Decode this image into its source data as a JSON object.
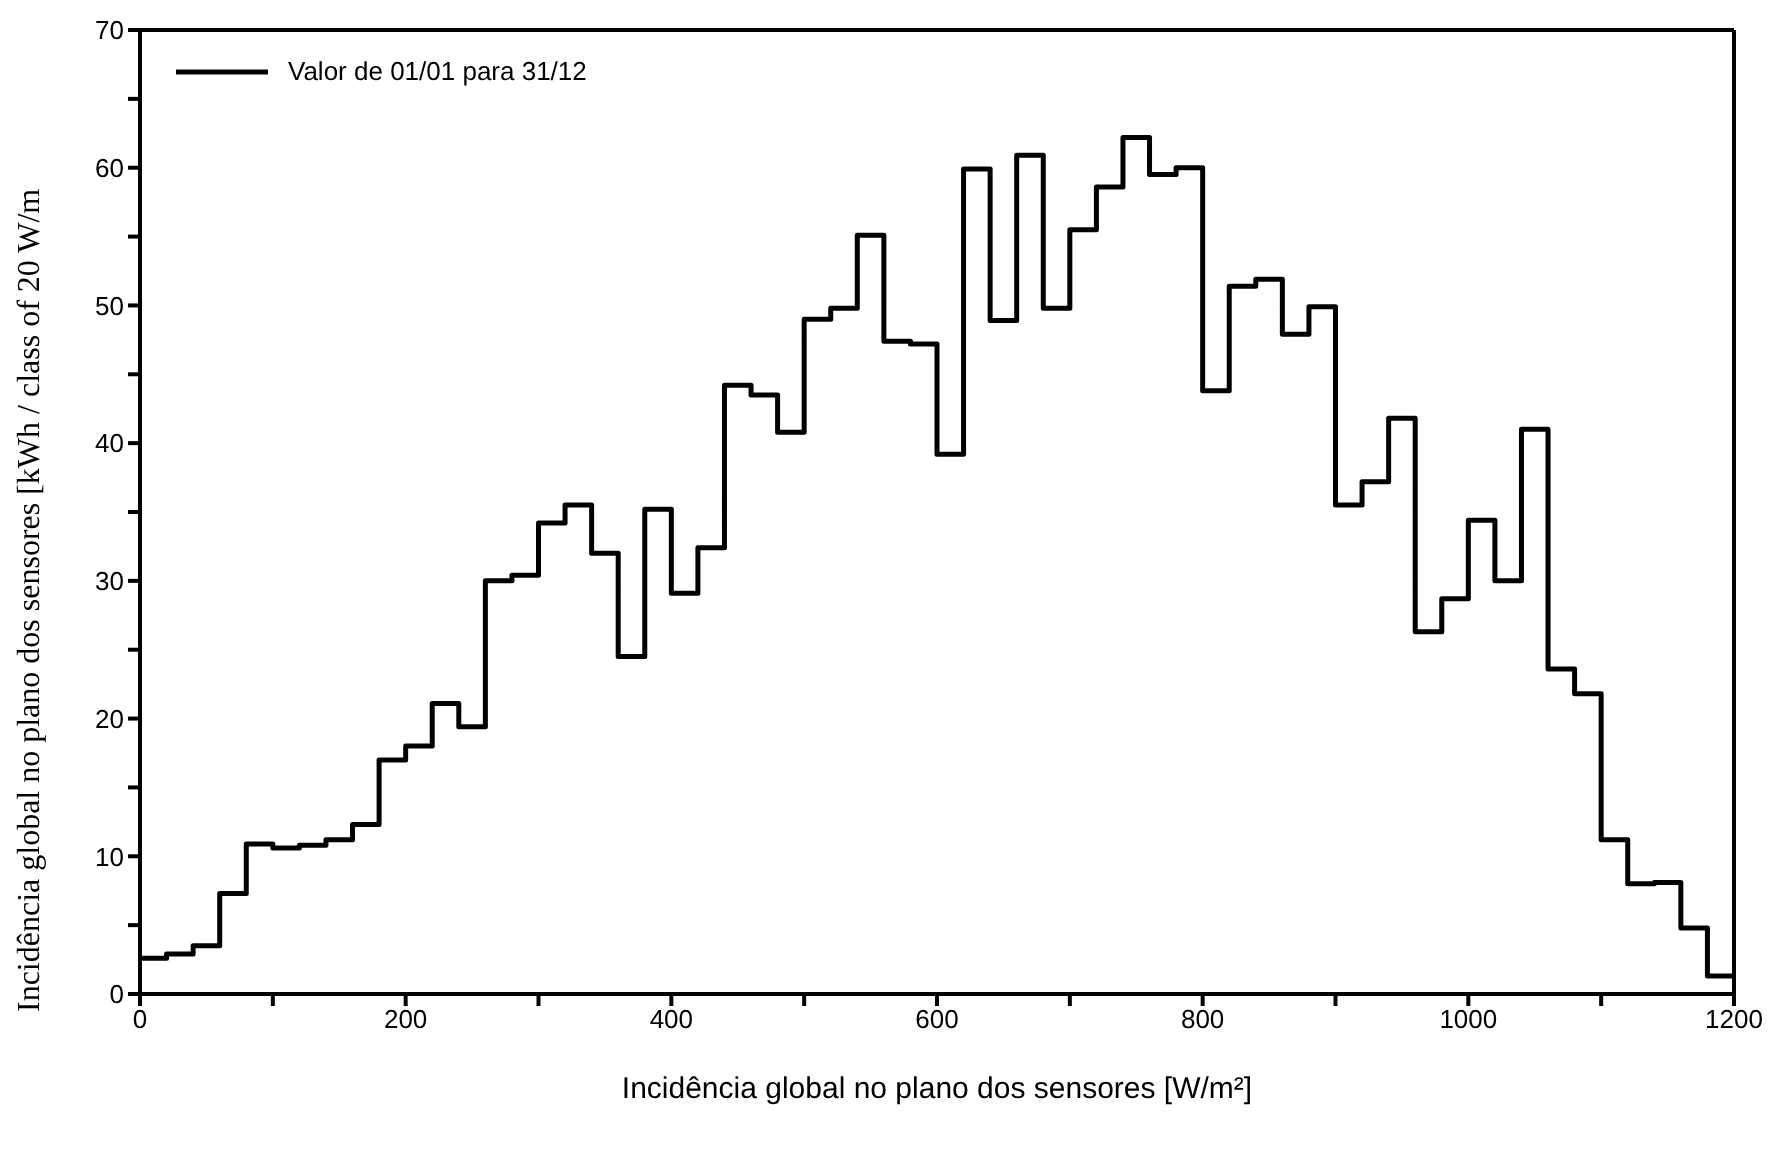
{
  "chart_data": {
    "type": "histogram",
    "xlabel": "Incidência global no plano dos sensores [W/m²]",
    "ylabel": "Incidência global no plano dos sensores [kWh / class of 20 W/m",
    "bins": [
      0,
      20,
      40,
      60,
      80,
      100,
      120,
      140,
      160,
      180,
      200,
      220,
      240,
      260,
      280,
      300,
      320,
      340,
      360,
      380,
      400,
      420,
      440,
      460,
      480,
      500,
      520,
      540,
      560,
      580,
      600,
      620,
      640,
      660,
      680,
      700,
      720,
      740,
      760,
      780,
      800,
      820,
      840,
      860,
      880,
      900,
      920,
      940,
      960,
      980,
      1000,
      1020,
      1040,
      1060,
      1080,
      1100,
      1120,
      1140,
      1160,
      1180,
      1200
    ],
    "series": [
      {
        "name": "Valor de 01/01 para 31/12",
        "color": "#000000",
        "values": [
          2.6,
          2.9,
          3.5,
          7.3,
          10.9,
          10.6,
          10.8,
          11.2,
          12.3,
          17.0,
          18.0,
          21.1,
          19.4,
          30.0,
          30.4,
          34.2,
          35.5,
          32.0,
          24.5,
          35.2,
          29.1,
          32.4,
          44.2,
          43.5,
          40.8,
          49.0,
          49.8,
          55.1,
          47.4,
          47.2,
          39.2,
          59.9,
          48.9,
          60.9,
          49.8,
          55.5,
          58.6,
          62.2,
          59.5,
          60.0,
          43.8,
          51.4,
          51.9,
          47.9,
          49.9,
          35.5,
          37.2,
          41.8,
          26.3,
          28.7,
          34.4,
          30.0,
          41.0,
          23.6,
          21.8,
          11.2,
          8.0,
          8.1,
          4.8,
          1.3
        ]
      }
    ],
    "xlim": [
      0,
      1200
    ],
    "xticks": [
      0,
      {
        "value": 100,
        "label": null
      },
      200,
      {
        "value": 300,
        "label": null
      },
      400,
      {
        "value": 500,
        "label": null
      },
      600,
      {
        "value": 700,
        "label": null
      },
      800,
      {
        "value": 900,
        "label": null
      },
      1000,
      {
        "value": 1100,
        "label": null
      },
      1200
    ],
    "ylim": [
      0,
      70
    ],
    "yticks": [
      0,
      {
        "value": 5,
        "label": null
      },
      10,
      {
        "value": 15,
        "label": null
      },
      20,
      {
        "value": 25,
        "label": null
      },
      30,
      {
        "value": 35,
        "label": null
      },
      40,
      {
        "value": 45,
        "label": null
      },
      50,
      {
        "value": 55,
        "label": null
      },
      60,
      {
        "value": 65,
        "label": null
      },
      70
    ],
    "grid": false,
    "legend": "top left",
    "line_style": "solid",
    "marker": "none"
  }
}
